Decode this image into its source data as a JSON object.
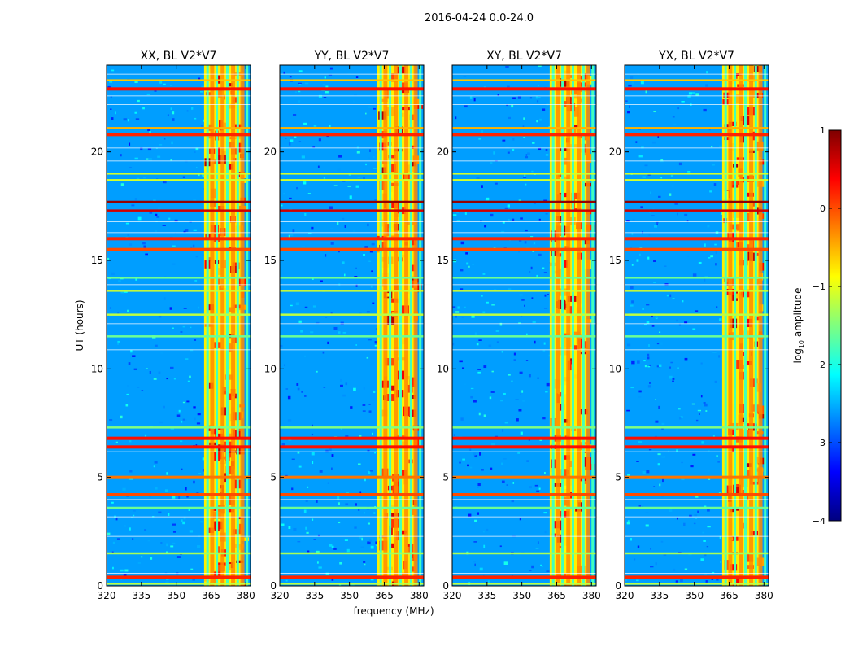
{
  "chart_data": {
    "type": "heatmap",
    "title": "2016-04-24 0.0-24.0",
    "xlabel": "frequency (MHz)",
    "ylabel": "UT (hours)",
    "colorbar_label": "log10 amplitude",
    "colorbar_label_prefix": "log",
    "colorbar_label_sub": "10",
    "colorbar_label_suffix": " amplitude",
    "colormap": "jet",
    "xlim": [
      320,
      382
    ],
    "ylim": [
      0,
      24
    ],
    "clim": [
      -4,
      1
    ],
    "x_ticks": [
      320,
      335,
      350,
      365,
      380
    ],
    "x_tick_labels": [
      "320",
      "335",
      "350",
      "365",
      "380"
    ],
    "y_ticks": [
      0,
      5,
      10,
      15,
      20
    ],
    "y_tick_labels": [
      "0",
      "5",
      "10",
      "15",
      "20"
    ],
    "colorbar_ticks": [
      -4,
      -3,
      -2,
      -1,
      0,
      1
    ],
    "colorbar_tick_labels": [
      "−4",
      "−3",
      "−2",
      "−1",
      "0",
      "1"
    ],
    "colorbar_colors": [
      "#00007f",
      "#0000ff",
      "#007fff",
      "#00ffff",
      "#7fff7f",
      "#ffff00",
      "#ff7f00",
      "#ff0000",
      "#7f0000"
    ],
    "panels": [
      {
        "title": "XX, BL V2*V7",
        "pol": "XX"
      },
      {
        "title": "YY, BL V2*V7",
        "pol": "YY"
      },
      {
        "title": "XY, BL V2*V7",
        "pol": "XY"
      },
      {
        "title": "YX, BL V2*V7",
        "pol": "YX"
      }
    ],
    "rfi_band_mhz": [
      362,
      378
    ],
    "rfi_band_level": -0.8,
    "background_level": -2.6,
    "bright_channels_mhz": [
      365.5,
      370.0,
      374.5,
      378.5
    ],
    "dark_channels_mhz": [
      363.5,
      367.5,
      372.0,
      376.5,
      380.5
    ],
    "horizontal_bands": [
      {
        "ut": 0.1,
        "level": -1.2
      },
      {
        "ut": 0.4,
        "level": 0.2
      },
      {
        "ut": 1.5,
        "level": -1.3
      },
      {
        "ut": 3.6,
        "level": -1.6
      },
      {
        "ut": 4.2,
        "level": 0.0
      },
      {
        "ut": 5.0,
        "level": -0.2
      },
      {
        "ut": 6.4,
        "level": 0.3
      },
      {
        "ut": 6.8,
        "level": 0.3
      },
      {
        "ut": 7.3,
        "level": -1.5
      },
      {
        "ut": 11.5,
        "level": -1.6
      },
      {
        "ut": 12.5,
        "level": -1.2
      },
      {
        "ut": 13.6,
        "level": -1.1
      },
      {
        "ut": 14.2,
        "level": -1.6
      },
      {
        "ut": 15.5,
        "level": 0.0
      },
      {
        "ut": 16.0,
        "level": 0.2
      },
      {
        "ut": 17.3,
        "level": 0.6
      },
      {
        "ut": 17.7,
        "level": 0.9
      },
      {
        "ut": 18.7,
        "level": -1.1
      },
      {
        "ut": 19.0,
        "level": -1.1
      },
      {
        "ut": 20.8,
        "level": 0.2
      },
      {
        "ut": 21.1,
        "level": -0.5
      },
      {
        "ut": 22.9,
        "level": 0.3
      },
      {
        "ut": 23.3,
        "level": -0.6
      }
    ]
  }
}
